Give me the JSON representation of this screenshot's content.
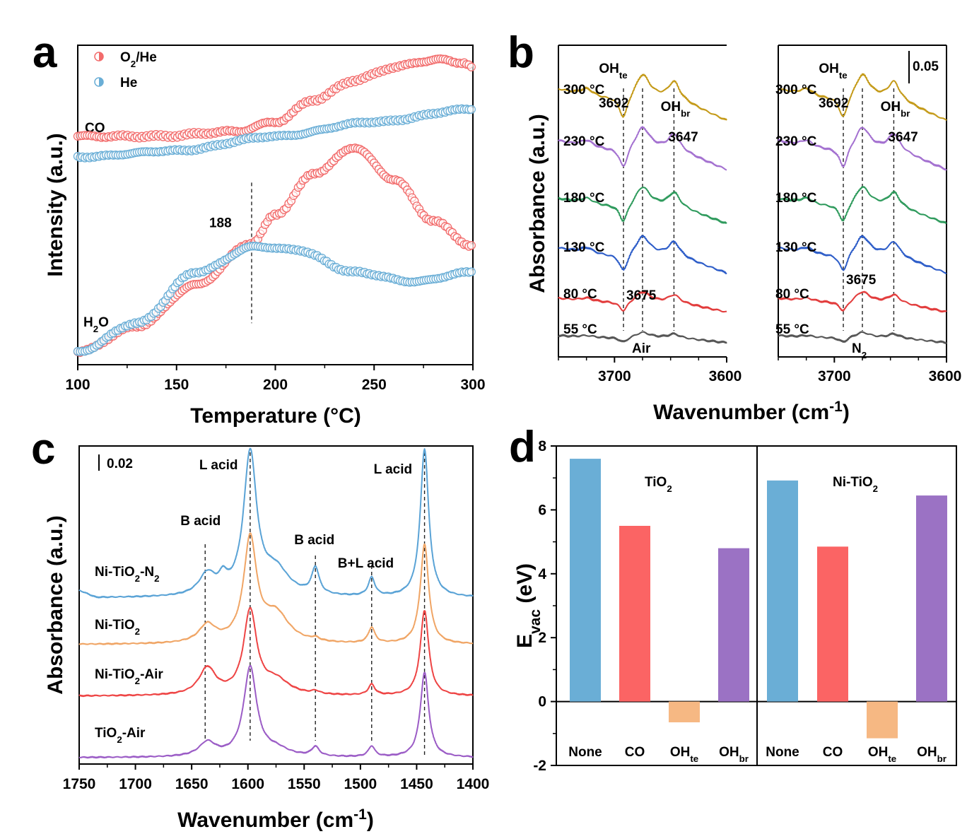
{
  "chart_data": [
    {
      "panel": "a",
      "type": "scatter",
      "xlabel": "Temperature (°C)",
      "ylabel": "Intensity (a.u.)",
      "xlim": [
        100,
        300
      ],
      "xticks": [
        "100",
        "150",
        "200",
        "250",
        "300"
      ],
      "legend": {
        "placement": "top-left",
        "entries": [
          "O2/He",
          "He"
        ]
      },
      "colors": {
        "O2/He": "#f26b6b",
        "He": "#6aaed6"
      },
      "annotations": [
        {
          "text": "188",
          "x": 188
        },
        {
          "text": "CO"
        },
        {
          "text": "H2O"
        }
      ],
      "series": [
        {
          "name": "O2/He",
          "group": "CO",
          "x": [
            100,
            140,
            180,
            200,
            220,
            240,
            260,
            275,
            285,
            295,
            300
          ],
          "y": [
            0.715,
            0.715,
            0.73,
            0.76,
            0.83,
            0.89,
            0.93,
            0.95,
            0.955,
            0.945,
            0.93
          ]
        },
        {
          "name": "He",
          "group": "CO",
          "x": [
            100,
            150,
            200,
            250,
            300
          ],
          "y": [
            0.65,
            0.67,
            0.715,
            0.76,
            0.8
          ]
        },
        {
          "name": "O2/He",
          "group": "H2O",
          "x": [
            100,
            130,
            160,
            188,
            200,
            220,
            240,
            260,
            280,
            300
          ],
          "y": [
            0.04,
            0.12,
            0.25,
            0.38,
            0.47,
            0.6,
            0.68,
            0.58,
            0.45,
            0.37
          ]
        },
        {
          "name": "He",
          "group": "H2O",
          "x": [
            100,
            130,
            160,
            190,
            210,
            240,
            270,
            300
          ],
          "y": [
            0.04,
            0.13,
            0.29,
            0.37,
            0.36,
            0.29,
            0.26,
            0.29
          ]
        }
      ]
    },
    {
      "panel": "b",
      "type": "line",
      "xlabel": "Wavenumber (cm-1)",
      "ylabel": "Absorbance (a.u.)",
      "xlim": [
        3750,
        3600
      ],
      "xticks": [
        "3700",
        "3600"
      ],
      "scale_bar": "0.05",
      "subplots": [
        "Air",
        "N2"
      ],
      "labels": {
        "OHte": "OHte",
        "OHbr": "OHbr",
        "p3692": "3692",
        "p3647": "3647",
        "p3675": "3675"
      },
      "temperatures": [
        "300 °C",
        "230 °C",
        "180 °C",
        "130 °C",
        "80 °C",
        "55 °C"
      ],
      "series_colors": [
        "#c49a18",
        "#a370d0",
        "#2e9a5c",
        "#2c5cc8",
        "#e23b3b",
        "#555555"
      ],
      "dashed_at": [
        3692,
        3675,
        3647
      ]
    },
    {
      "panel": "c",
      "type": "line",
      "xlabel": "Wavenumber (cm-1)",
      "ylabel": "Absorbance (a.u.)",
      "xlim": [
        1750,
        1400
      ],
      "xticks": [
        "1750",
        "1700",
        "1650",
        "1600",
        "1550",
        "1500",
        "1450",
        "1400"
      ],
      "scale_bar": "0.02",
      "series": [
        {
          "name": "Ni-TiO2-N2",
          "color": "#5aa3d6"
        },
        {
          "name": "Ni-TiO2",
          "color": "#f0a565"
        },
        {
          "name": "Ni-TiO2-Air",
          "color": "#ee4444"
        },
        {
          "name": "TiO2-Air",
          "color": "#9b5cc6"
        }
      ],
      "peaks": [
        {
          "label": "B acid",
          "x": 1638
        },
        {
          "label": "L acid",
          "x": 1598
        },
        {
          "label": "B acid",
          "x": 1540
        },
        {
          "label": "B+L acid",
          "x": 1490
        },
        {
          "label": "L acid",
          "x": 1443
        }
      ]
    },
    {
      "panel": "d",
      "type": "bar",
      "ylabel": "Evac (eV)",
      "ylim": [
        -2,
        8
      ],
      "yticks": [
        "-2",
        "0",
        "2",
        "4",
        "6",
        "8"
      ],
      "categories": [
        "None",
        "CO",
        "OHte",
        "OHbr"
      ],
      "colors": [
        "#6aaed6",
        "#fb6464",
        "#f6b883",
        "#9b72c4"
      ],
      "groups": [
        {
          "name": "TiO2",
          "values": [
            7.6,
            5.5,
            -0.65,
            4.8
          ]
        },
        {
          "name": "Ni-TiO2",
          "values": [
            6.92,
            4.85,
            -1.15,
            6.45
          ]
        }
      ]
    }
  ]
}
